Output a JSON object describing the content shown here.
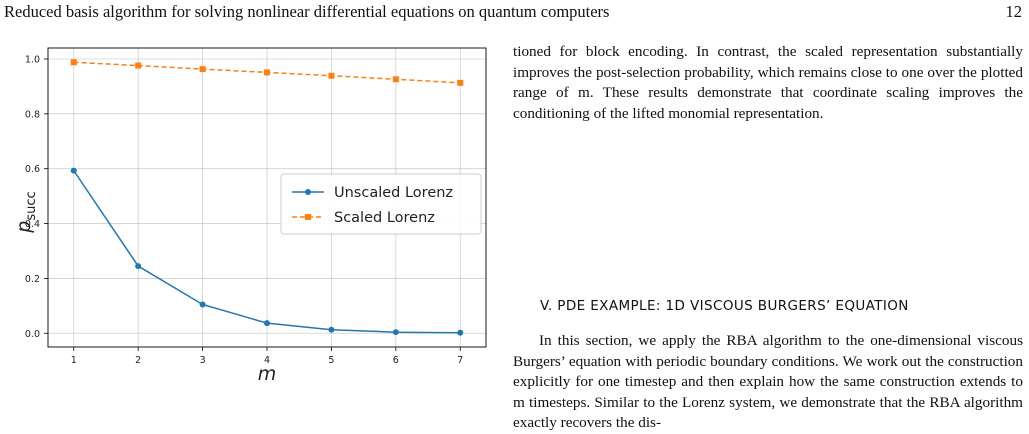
{
  "header": {
    "title": "Reduced basis algorithm for solving nonlinear differential equations on quantum computers",
    "page_number": "12"
  },
  "chart_data": {
    "type": "line",
    "xlabel": "m",
    "ylabel": "p",
    "ylabel_sub": "succ",
    "xlim": [
      0.6,
      7.4
    ],
    "ylim": [
      -0.05,
      1.04
    ],
    "x_ticks": [
      "1",
      "2",
      "3",
      "4",
      "5",
      "6",
      "7"
    ],
    "y_ticks": [
      "0.0",
      "0.2",
      "0.4",
      "0.6",
      "0.8",
      "1.0"
    ],
    "grid": true,
    "legend_position": "center-right",
    "x": [
      1,
      2,
      3,
      4,
      5,
      6,
      7
    ],
    "series": [
      {
        "name": "Unscaled Lorenz",
        "color": "#1f77b4",
        "marker": "circle",
        "linestyle": "solid",
        "values": [
          0.593,
          0.245,
          0.105,
          0.037,
          0.013,
          0.004,
          0.002
        ]
      },
      {
        "name": "Scaled Lorenz",
        "color": "#ff7f0e",
        "marker": "square",
        "linestyle": "dashed",
        "values": [
          0.988,
          0.976,
          0.963,
          0.951,
          0.939,
          0.926,
          0.913
        ]
      }
    ]
  },
  "right_column": {
    "paragraph_continued": "tioned for block encoding. In contrast, the scaled representation substantially improves the post-selection probability, which remains close to one over the plotted range of m. These results demonstrate that coordinate scaling improves the conditioning of the lifted monomial representation.",
    "section_heading": "V.   PDE EXAMPLE: 1D VISCOUS BURGERS’ EQUATION",
    "section_paragraph": "In this section, we apply the RBA algorithm to the one-dimensional viscous Burgers’ equation with periodic boundary conditions. We work out the construction explicitly for one timestep and then explain how the same construction extends to m timesteps. Similar to the Lorenz system, we demonstrate that the RBA algorithm exactly recovers the dis-"
  }
}
